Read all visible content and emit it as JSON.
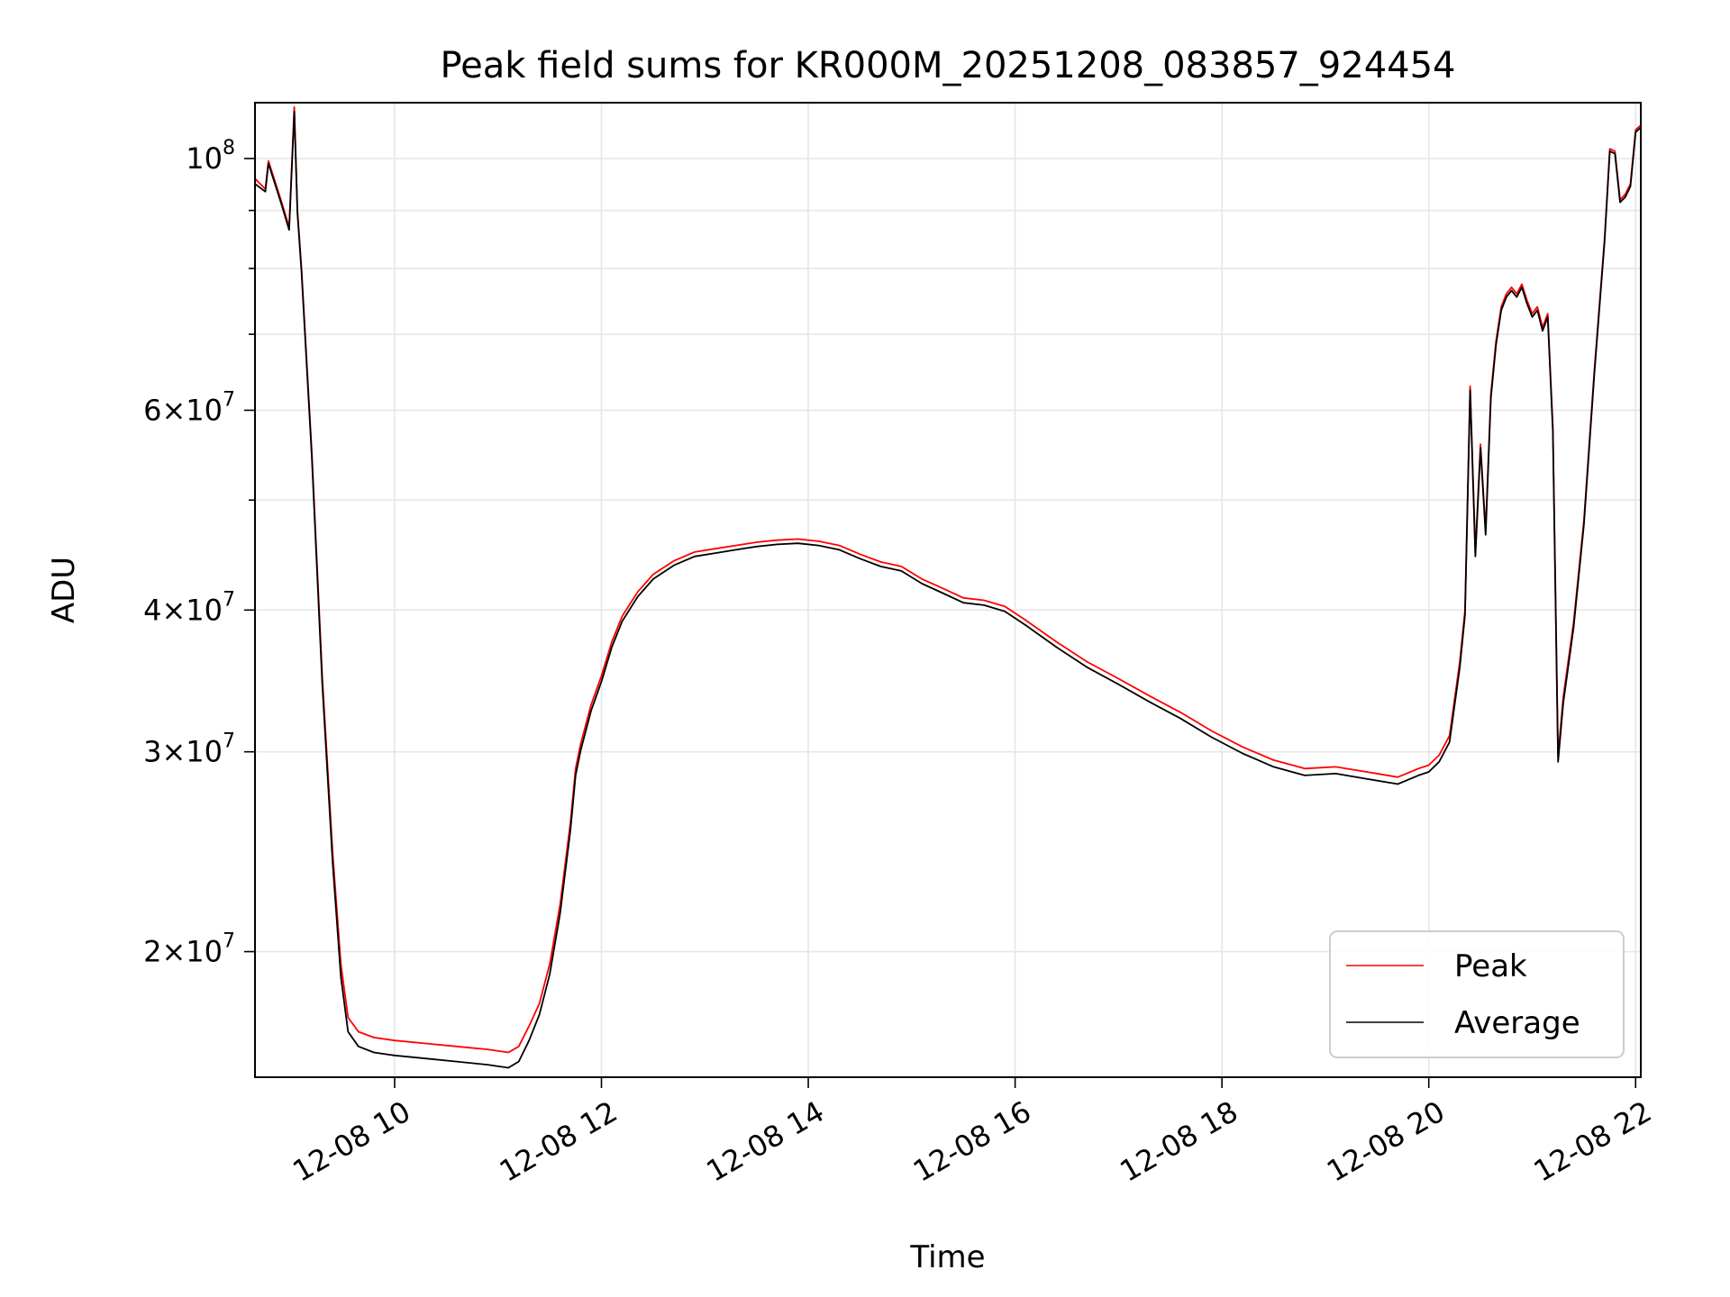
{
  "chart_data": {
    "type": "line",
    "title": "Peak field sums for KR000M_20251208_083857_924454",
    "xlabel": "Time",
    "ylabel": "ADU",
    "yscale": "log",
    "ylim": [
      15500000,
      112000000
    ],
    "xlim": [
      8.65,
      22.05
    ],
    "grid": true,
    "legend_position": "lower-right",
    "x_ticks": [
      {
        "value": 10,
        "label": "12-08 10"
      },
      {
        "value": 12,
        "label": "12-08 12"
      },
      {
        "value": 14,
        "label": "12-08 14"
      },
      {
        "value": 16,
        "label": "12-08 16"
      },
      {
        "value": 18,
        "label": "12-08 18"
      },
      {
        "value": 20,
        "label": "12-08 20"
      },
      {
        "value": 22,
        "label": "12-08 22"
      }
    ],
    "y_ticks": [
      {
        "value": 100000000,
        "mant": "",
        "exp": "8"
      },
      {
        "value": 60000000,
        "mant": "6",
        "exp": "7"
      },
      {
        "value": 40000000,
        "mant": "4",
        "exp": "7"
      },
      {
        "value": 30000000,
        "mant": "3",
        "exp": "7"
      },
      {
        "value": 20000000,
        "mant": "2",
        "exp": "7"
      }
    ],
    "y_minor_ticks": [
      50000000,
      70000000,
      80000000,
      90000000
    ],
    "series": [
      {
        "name": "Peak",
        "color": "#ff0000",
        "x": [
          8.65,
          8.75,
          8.78,
          8.9,
          8.98,
          9.03,
          9.06,
          9.1,
          9.2,
          9.3,
          9.4,
          9.48,
          9.55,
          9.65,
          9.8,
          10.0,
          10.3,
          10.6,
          10.9,
          11.1,
          11.2,
          11.3,
          11.4,
          11.5,
          11.6,
          11.7,
          11.75,
          11.8,
          11.9,
          12.0,
          12.1,
          12.2,
          12.35,
          12.5,
          12.7,
          12.9,
          13.1,
          13.3,
          13.5,
          13.7,
          13.9,
          14.1,
          14.3,
          14.5,
          14.7,
          14.9,
          15.1,
          15.3,
          15.5,
          15.7,
          15.9,
          16.1,
          16.4,
          16.7,
          17.0,
          17.3,
          17.6,
          17.9,
          18.2,
          18.5,
          18.8,
          19.1,
          19.4,
          19.7,
          19.9,
          20.0,
          20.1,
          20.2,
          20.3,
          20.35,
          20.4,
          20.45,
          20.5,
          20.55,
          20.6,
          20.65,
          20.7,
          20.75,
          20.8,
          20.85,
          20.9,
          20.95,
          21.0,
          21.05,
          21.1,
          21.15,
          21.2,
          21.25,
          21.3,
          21.4,
          21.5,
          21.6,
          21.7,
          21.75,
          21.8,
          21.85,
          21.9,
          21.95,
          22.0,
          22.05
        ],
        "values": [
          96000000,
          94000000,
          99500000,
          92000000,
          87000000,
          111000000,
          90000000,
          80000000,
          55000000,
          35000000,
          24500000,
          19500000,
          17500000,
          17000000,
          16800000,
          16700000,
          16600000,
          16500000,
          16400000,
          16300000,
          16500000,
          17200000,
          18000000,
          19500000,
          22000000,
          26000000,
          29000000,
          30500000,
          33000000,
          35000000,
          37500000,
          39500000,
          41500000,
          43000000,
          44200000,
          45000000,
          45300000,
          45600000,
          45900000,
          46100000,
          46200000,
          46000000,
          45600000,
          44800000,
          44100000,
          43700000,
          42600000,
          41800000,
          41000000,
          40800000,
          40300000,
          39200000,
          37500000,
          36000000,
          34800000,
          33600000,
          32500000,
          31300000,
          30300000,
          29500000,
          29000000,
          29100000,
          28800000,
          28500000,
          29000000,
          29200000,
          29800000,
          31000000,
          36000000,
          40000000,
          63000000,
          45000000,
          56000000,
          47000000,
          62000000,
          69000000,
          74000000,
          76000000,
          77000000,
          76000000,
          77500000,
          75000000,
          73000000,
          74000000,
          71000000,
          73000000,
          58000000,
          29800000,
          33500000,
          39000000,
          48000000,
          65000000,
          85000000,
          102000000,
          101500000,
          92000000,
          93000000,
          95000000,
          106000000,
          107000000
        ]
      },
      {
        "name": "Average",
        "color": "#000000",
        "x": [
          8.65,
          8.75,
          8.78,
          8.9,
          8.98,
          9.03,
          9.06,
          9.1,
          9.2,
          9.3,
          9.4,
          9.48,
          9.55,
          9.65,
          9.8,
          10.0,
          10.3,
          10.6,
          10.9,
          11.1,
          11.2,
          11.3,
          11.4,
          11.5,
          11.6,
          11.7,
          11.75,
          11.8,
          11.9,
          12.0,
          12.1,
          12.2,
          12.35,
          12.5,
          12.7,
          12.9,
          13.1,
          13.3,
          13.5,
          13.7,
          13.9,
          14.1,
          14.3,
          14.5,
          14.7,
          14.9,
          15.1,
          15.3,
          15.5,
          15.7,
          15.9,
          16.1,
          16.4,
          16.7,
          17.0,
          17.3,
          17.6,
          17.9,
          18.2,
          18.5,
          18.8,
          19.1,
          19.4,
          19.7,
          19.9,
          20.0,
          20.1,
          20.2,
          20.3,
          20.35,
          20.4,
          20.45,
          20.5,
          20.55,
          20.6,
          20.65,
          20.7,
          20.75,
          20.8,
          20.85,
          20.9,
          20.95,
          21.0,
          21.05,
          21.1,
          21.15,
          21.2,
          21.25,
          21.3,
          21.4,
          21.5,
          21.6,
          21.7,
          21.75,
          21.8,
          21.85,
          21.9,
          21.95,
          22.0,
          22.05
        ],
        "values": [
          95000000,
          93500000,
          99000000,
          91500000,
          86500000,
          110000000,
          89500000,
          79500000,
          54500000,
          34500000,
          24000000,
          19000000,
          17000000,
          16500000,
          16300000,
          16200000,
          16100000,
          16000000,
          15900000,
          15800000,
          16000000,
          16700000,
          17600000,
          19100000,
          21600000,
          25600000,
          28600000,
          30100000,
          32600000,
          34600000,
          37100000,
          39100000,
          41100000,
          42600000,
          43800000,
          44600000,
          44900000,
          45200000,
          45500000,
          45700000,
          45800000,
          45600000,
          45200000,
          44400000,
          43700000,
          43300000,
          42200000,
          41400000,
          40600000,
          40400000,
          39900000,
          38800000,
          37100000,
          35600000,
          34400000,
          33200000,
          32100000,
          30900000,
          29900000,
          29100000,
          28600000,
          28700000,
          28400000,
          28100000,
          28600000,
          28800000,
          29400000,
          30600000,
          35600000,
          39600000,
          62500000,
          44600000,
          55600000,
          46600000,
          61500000,
          68500000,
          73500000,
          75500000,
          76500000,
          75500000,
          77000000,
          74500000,
          72500000,
          73500000,
          70500000,
          72500000,
          57500000,
          29400000,
          33100000,
          38600000,
          47600000,
          64500000,
          84500000,
          101500000,
          101000000,
          91500000,
          92500000,
          94500000,
          105500000,
          106500000
        ]
      }
    ]
  }
}
